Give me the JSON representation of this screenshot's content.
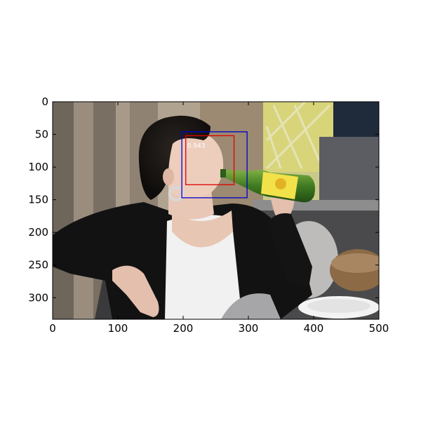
{
  "image": {
    "description_semantic": "photo-woman-drinking-from-bottle",
    "width": 500,
    "height": 333
  },
  "axes": {
    "x_ticks": [
      0,
      100,
      200,
      300,
      400,
      500
    ],
    "y_ticks": [
      0,
      50,
      100,
      150,
      200,
      250,
      300
    ],
    "xlim": [
      0,
      500
    ],
    "ylim": [
      333,
      0
    ]
  },
  "detections": [
    {
      "name": "blue-box",
      "color": "#0000cc",
      "x0": 198,
      "y0": 46,
      "x1": 298,
      "y1": 147,
      "label": ""
    },
    {
      "name": "red-box",
      "color": "#e00000",
      "x0": 204,
      "y0": 52,
      "x1": 278,
      "y1": 127,
      "label": "0.943"
    }
  ]
}
